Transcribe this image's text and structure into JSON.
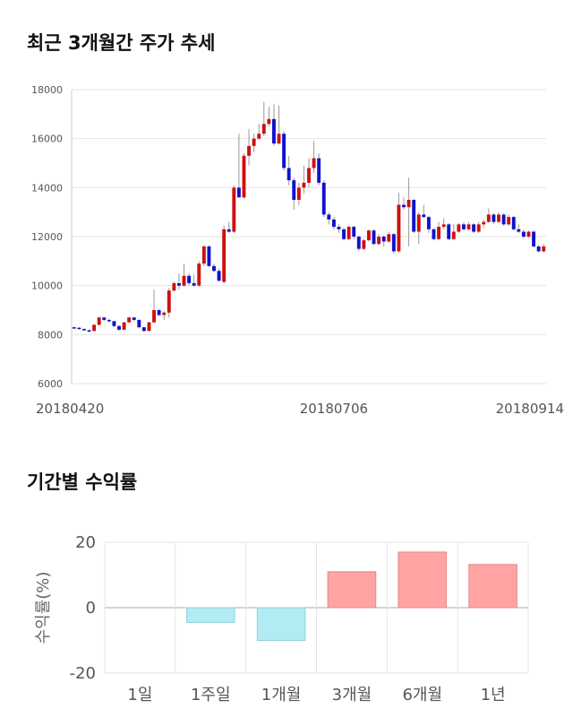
{
  "titles": {
    "price_trend": "최근 3개월간 주가 추세",
    "returns": "기간별 수익률"
  },
  "colors": {
    "up": "#cc1111",
    "down": "#1111cc",
    "positive_bar": "#ffa3a3",
    "negative_bar": "#b2ebf2",
    "grid": "#e6e6e6"
  },
  "chart_data": [
    {
      "type": "candlestick",
      "title": "최근 3개월간 주가 추세",
      "ylim": [
        6000,
        18000
      ],
      "y_ticks": [
        6000,
        8000,
        10000,
        12000,
        14000,
        16000,
        18000
      ],
      "x_tick_labels": [
        "20180420",
        "20180706",
        "20180914"
      ],
      "x_tick_index": [
        0,
        52,
        105
      ],
      "grid": true,
      "candles": [
        [
          8300,
          8320,
          8250,
          8280
        ],
        [
          8280,
          8300,
          8200,
          8230
        ],
        [
          8230,
          8250,
          8150,
          8180
        ],
        [
          8180,
          8200,
          8100,
          8150
        ],
        [
          8150,
          8420,
          8130,
          8400
        ],
        [
          8400,
          8720,
          8380,
          8700
        ],
        [
          8700,
          8720,
          8550,
          8600
        ],
        [
          8600,
          8650,
          8480,
          8550
        ],
        [
          8550,
          8560,
          8300,
          8350
        ],
        [
          8350,
          8380,
          8150,
          8200
        ],
        [
          8200,
          8520,
          8180,
          8500
        ],
        [
          8500,
          8720,
          8480,
          8700
        ],
        [
          8700,
          8720,
          8550,
          8600
        ],
        [
          8600,
          8620,
          8250,
          8300
        ],
        [
          8300,
          8320,
          8100,
          8150
        ],
        [
          8150,
          8520,
          8130,
          8500
        ],
        [
          8500,
          9850,
          8480,
          9000
        ],
        [
          9000,
          9050,
          8750,
          8800
        ],
        [
          8800,
          8950,
          8600,
          8900
        ],
        [
          8900,
          9900,
          8700,
          9800
        ],
        [
          9800,
          10150,
          9750,
          10100
        ],
        [
          10100,
          10500,
          9850,
          10000
        ],
        [
          10000,
          10900,
          9950,
          10400
        ],
        [
          10400,
          10500,
          10000,
          10100
        ],
        [
          10100,
          10450,
          9950,
          10000
        ],
        [
          10000,
          11000,
          9950,
          10900
        ],
        [
          10900,
          11650,
          10800,
          11600
        ],
        [
          11600,
          11650,
          10750,
          10800
        ],
        [
          10800,
          10900,
          10550,
          10600
        ],
        [
          10600,
          10700,
          10150,
          10200
        ],
        [
          10150,
          12450,
          10100,
          12300
        ],
        [
          12300,
          12600,
          12150,
          12200
        ],
        [
          12200,
          14100,
          12150,
          14000
        ],
        [
          14000,
          16200,
          13600,
          13600
        ],
        [
          13600,
          15400,
          13550,
          15300
        ],
        [
          15300,
          16400,
          14900,
          15700
        ],
        [
          15700,
          16200,
          15450,
          16000
        ],
        [
          16000,
          16600,
          15950,
          16200
        ],
        [
          16200,
          17500,
          16100,
          16600
        ],
        [
          16600,
          17300,
          16500,
          16800
        ],
        [
          16800,
          17400,
          15700,
          15800
        ],
        [
          15800,
          17350,
          15750,
          16200
        ],
        [
          16200,
          16300,
          14700,
          14800
        ],
        [
          14800,
          15300,
          14100,
          14300
        ],
        [
          14300,
          14400,
          13100,
          13500
        ],
        [
          13500,
          14200,
          13300,
          14000
        ],
        [
          14000,
          14900,
          13750,
          14200
        ],
        [
          14200,
          15200,
          14000,
          14800
        ],
        [
          14800,
          15900,
          14600,
          15200
        ],
        [
          15200,
          15400,
          14100,
          14200
        ],
        [
          14200,
          14300,
          12800,
          12900
        ],
        [
          12900,
          13000,
          12500,
          12700
        ],
        [
          12700,
          12800,
          12300,
          12400
        ],
        [
          12400,
          12500,
          12150,
          12300
        ],
        [
          12300,
          12350,
          11850,
          11900
        ],
        [
          11900,
          12450,
          11850,
          12400
        ],
        [
          12400,
          12450,
          11900,
          12000
        ],
        [
          12000,
          12050,
          11400,
          11500
        ],
        [
          11500,
          11900,
          11450,
          11850
        ],
        [
          11850,
          12300,
          11800,
          12250
        ],
        [
          12250,
          12300,
          11650,
          11700
        ],
        [
          11700,
          12100,
          11650,
          12000
        ],
        [
          12000,
          12050,
          11600,
          11800
        ],
        [
          11800,
          12200,
          11750,
          12100
        ],
        [
          12100,
          12150,
          11300,
          11400
        ],
        [
          11400,
          13800,
          11350,
          13300
        ],
        [
          13300,
          13600,
          13100,
          13200
        ],
        [
          13200,
          14400,
          11600,
          13500
        ],
        [
          13500,
          13550,
          12150,
          12200
        ],
        [
          12200,
          13000,
          11700,
          12900
        ],
        [
          12900,
          13300,
          12750,
          12800
        ],
        [
          12800,
          12850,
          12150,
          12300
        ],
        [
          12300,
          12350,
          11850,
          11900
        ],
        [
          11900,
          12600,
          11850,
          12400
        ],
        [
          12400,
          12750,
          12300,
          12500
        ],
        [
          12500,
          12550,
          11850,
          11900
        ],
        [
          11900,
          12500,
          11850,
          12200
        ],
        [
          12200,
          12550,
          12150,
          12500
        ],
        [
          12500,
          12600,
          12250,
          12300
        ],
        [
          12300,
          12600,
          12250,
          12500
        ],
        [
          12500,
          12550,
          12150,
          12200
        ],
        [
          12200,
          12600,
          12150,
          12500
        ],
        [
          12500,
          12700,
          12350,
          12600
        ],
        [
          12600,
          13150,
          12550,
          12900
        ],
        [
          12900,
          12950,
          12500,
          12600
        ],
        [
          12600,
          13000,
          12550,
          12900
        ],
        [
          12900,
          12950,
          12450,
          12500
        ],
        [
          12500,
          12900,
          12450,
          12800
        ],
        [
          12800,
          12850,
          12250,
          12300
        ],
        [
          12300,
          12500,
          12150,
          12200
        ],
        [
          12200,
          12300,
          11900,
          12000
        ],
        [
          12000,
          12250,
          11950,
          12200
        ],
        [
          12200,
          12250,
          11550,
          11600
        ],
        [
          11600,
          11650,
          11350,
          11400
        ],
        [
          11400,
          11700,
          11350,
          11600
        ]
      ]
    },
    {
      "type": "bar",
      "title": "기간별 수익률",
      "ylabel": "수익률(%)",
      "ylim": [
        -20,
        20
      ],
      "y_ticks": [
        -20,
        0,
        20
      ],
      "categories": [
        "1일",
        "1주일",
        "1개월",
        "3개월",
        "6개월",
        "1년"
      ],
      "values": [
        0,
        -4.5,
        -10,
        11,
        17,
        13.2
      ],
      "grid": true
    }
  ]
}
